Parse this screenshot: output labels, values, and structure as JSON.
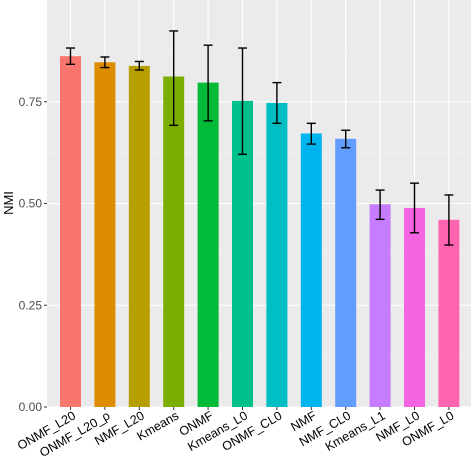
{
  "chart_data": {
    "type": "bar",
    "title": "",
    "xlabel": "",
    "ylabel": "NMI",
    "ylim": [
      0,
      1.0
    ],
    "yticks": [
      0.0,
      0.25,
      0.5,
      0.75
    ],
    "ytick_labels": [
      "0.00",
      "0.25",
      "0.50",
      "0.75"
    ],
    "grid": true,
    "legend": "none",
    "categories": [
      "ONMF_L20",
      "ONMF_L20_ρ",
      "NMF_L20",
      "Kmeans",
      "ONMF",
      "Kmeans_L0",
      "ONMF_CL0",
      "NMF",
      "NMF_CL0",
      "Kmeans_L1",
      "NMF_L0",
      "ONMF_L0"
    ],
    "values": [
      0.862,
      0.847,
      0.838,
      0.812,
      0.797,
      0.752,
      0.747,
      0.672,
      0.659,
      0.498,
      0.489,
      0.46
    ],
    "error_low": [
      0.842,
      0.834,
      0.828,
      0.692,
      0.703,
      0.621,
      0.697,
      0.646,
      0.637,
      0.461,
      0.428,
      0.398
    ],
    "error_high": [
      0.882,
      0.86,
      0.849,
      0.924,
      0.889,
      0.882,
      0.797,
      0.697,
      0.68,
      0.533,
      0.55,
      0.521
    ],
    "colors": [
      "#F8766D",
      "#DE8C00",
      "#B79F00",
      "#7CAE00",
      "#00BA38",
      "#00C08B",
      "#00BFC4",
      "#00B4F0",
      "#619CFF",
      "#C77CFF",
      "#F564E3",
      "#FF64B0"
    ]
  }
}
